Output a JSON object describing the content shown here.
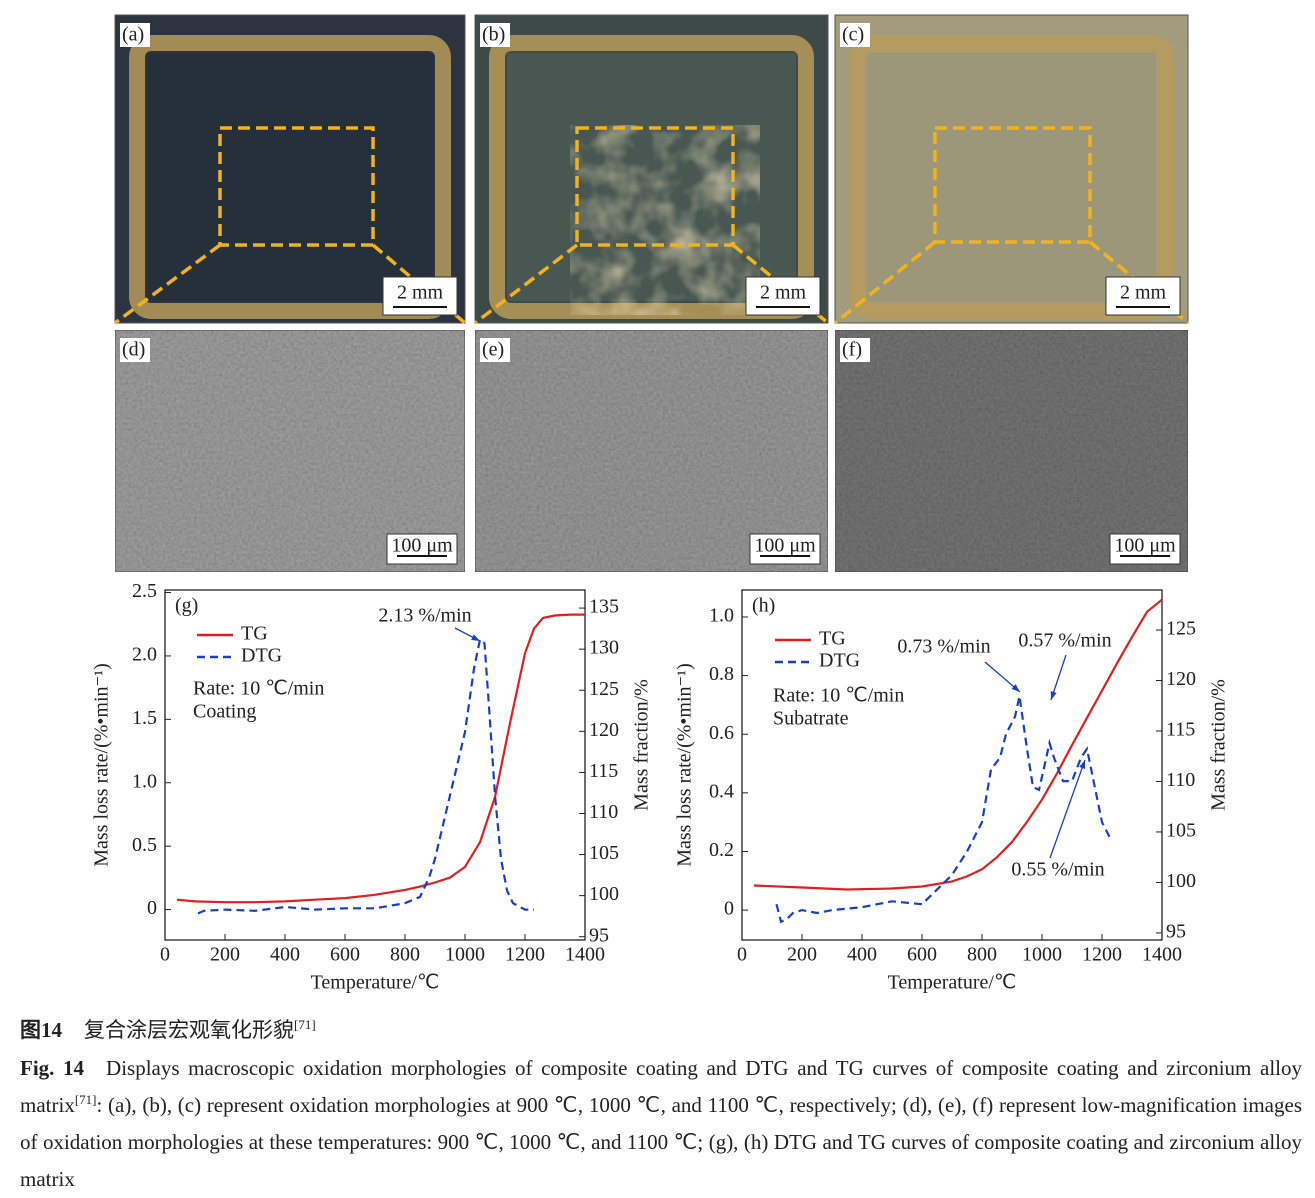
{
  "panels": [
    {
      "label": "(a)",
      "scale": "2 mm"
    },
    {
      "label": "(b)",
      "scale": "2 mm"
    },
    {
      "label": "(c)",
      "scale": "2 mm"
    },
    {
      "label": "(d)",
      "scale": "100 μm"
    },
    {
      "label": "(e)",
      "scale": "100 μm"
    },
    {
      "label": "(f)",
      "scale": "100 μm"
    }
  ],
  "chart_data": [
    {
      "type": "line",
      "panel_label": "(g)",
      "x_label": "Temperature/℃",
      "y_label": "Mass loss rate/(%•min⁻¹)",
      "y2_label": "Mass fraction/%",
      "xlim": [
        0,
        1400
      ],
      "xticks": [
        0,
        200,
        400,
        600,
        800,
        1000,
        1200,
        1400
      ],
      "ylim": [
        -0.24,
        2.52
      ],
      "yticks": [
        0,
        0.5,
        {
          "value": 1,
          "label": "1.0"
        },
        1.5,
        {
          "value": 2,
          "label": "2.0"
        },
        2.5
      ],
      "y2lim": [
        94.6,
        137.2
      ],
      "y2ticks": [
        95,
        100,
        105,
        110,
        115,
        120,
        125,
        130,
        135
      ],
      "annotations": [
        "Rate: 10 ℃/min",
        "Coating",
        "2.13 %/min"
      ],
      "series": [
        {
          "name": "TG",
          "color": "#e02020",
          "line_style": "solid",
          "axis": "y2",
          "x": [
            40,
            100,
            200,
            300,
            400,
            500,
            600,
            700,
            800,
            850,
            900,
            950,
            1000,
            1050,
            1100,
            1150,
            1200,
            1230,
            1260,
            1300,
            1350,
            1400
          ],
          "values": [
            99.5,
            99.3,
            99.2,
            99.2,
            99.3,
            99.5,
            99.7,
            100.1,
            100.7,
            101.1,
            101.6,
            102.2,
            103.5,
            106.5,
            112,
            121,
            129.5,
            132.5,
            133.8,
            134.1,
            134.2,
            134.2
          ]
        },
        {
          "name": "DTG",
          "color": "#1a3fc4",
          "line_style": "dashed",
          "x": [
            110,
            130,
            200,
            300,
            400,
            500,
            600,
            700,
            800,
            850,
            880,
            900,
            950,
            1000,
            1030,
            1050,
            1065,
            1080,
            1100,
            1120,
            1140,
            1160,
            1200,
            1230
          ],
          "values": [
            -0.03,
            -0.01,
            0,
            -0.01,
            0.02,
            0,
            0.01,
            0.01,
            0.05,
            0.1,
            0.25,
            0.4,
            0.9,
            1.4,
            1.9,
            2.13,
            2.1,
            1.6,
            0.9,
            0.4,
            0.15,
            0.05,
            0,
            0
          ]
        }
      ]
    },
    {
      "type": "line",
      "panel_label": "(h)",
      "x_label": "Temperature/℃",
      "y_label": "Mass loss rate/(%•min⁻¹)",
      "y2_label": "Mass fraction/%",
      "xlim": [
        0,
        1400
      ],
      "xticks": [
        0,
        200,
        400,
        600,
        800,
        1000,
        1200,
        1400
      ],
      "ylim": [
        -0.102,
        1.092
      ],
      "yticks": [
        0,
        0.2,
        0.4,
        0.6,
        0.8,
        {
          "value": 1,
          "label": "1.0"
        }
      ],
      "y2lim": [
        94.3,
        128.96
      ],
      "y2ticks": [
        95,
        100,
        105,
        110,
        115,
        120,
        125
      ],
      "annotations": [
        "Rate: 10 ℃/min",
        "Subatrate",
        "0.73 %/min",
        "0.57 %/min",
        "0.55 %/min"
      ],
      "series": [
        {
          "name": "TG",
          "color": "#e02020",
          "line_style": "solid",
          "axis": "y2",
          "x": [
            40,
            200,
            350,
            500,
            600,
            700,
            750,
            800,
            850,
            900,
            950,
            1000,
            1050,
            1100,
            1150,
            1200,
            1250,
            1300,
            1350,
            1400
          ],
          "values": [
            99.7,
            99.5,
            99.3,
            99.4,
            99.6,
            100.1,
            100.6,
            101.3,
            102.5,
            104,
            106,
            108.2,
            110.8,
            113.6,
            116.3,
            119,
            121.7,
            124.3,
            126.8,
            128
          ]
        },
        {
          "name": "DTG",
          "color": "#1a3fc4",
          "line_style": "dashed",
          "x": [
            115,
            130,
            150,
            170,
            200,
            250,
            300,
            400,
            500,
            600,
            650,
            700,
            750,
            800,
            830,
            860,
            880,
            910,
            925,
            950,
            970,
            990,
            1010,
            1025,
            1040,
            1070,
            1100,
            1130,
            1150,
            1170,
            1200,
            1230
          ],
          "values": [
            0.02,
            -0.04,
            -0.03,
            -0.01,
            0,
            -0.01,
            0,
            0.01,
            0.03,
            0.02,
            0.07,
            0.12,
            0.2,
            0.3,
            0.48,
            0.52,
            0.6,
            0.66,
            0.73,
            0.55,
            0.42,
            0.41,
            0.5,
            0.57,
            0.52,
            0.44,
            0.44,
            0.52,
            0.55,
            0.45,
            0.3,
            0.24
          ]
        }
      ]
    }
  ],
  "caption": {
    "cn": {
      "label": "图14",
      "text": "复合涂层宏观氧化形貌",
      "ref": "[71]"
    },
    "en": {
      "label": "Fig. 14",
      "text1": "Displays macroscopic oxidation morphologies of composite coating and DTG and TG curves of composite coating and zirconium alloy matrix",
      "ref": "[71]",
      "text2": ": (a), (b), (c) represent oxidation morphologies at 900 ℃, 1000 ℃, and 1100 ℃, respectively; (d), (e), (f) represent low-magnification images of oxidation morphologies at these temperatures: 900 ℃, 1000 ℃, and 1100 ℃; (g), (h) DTG and TG curves of composite coating and zirconium alloy matrix"
    }
  }
}
